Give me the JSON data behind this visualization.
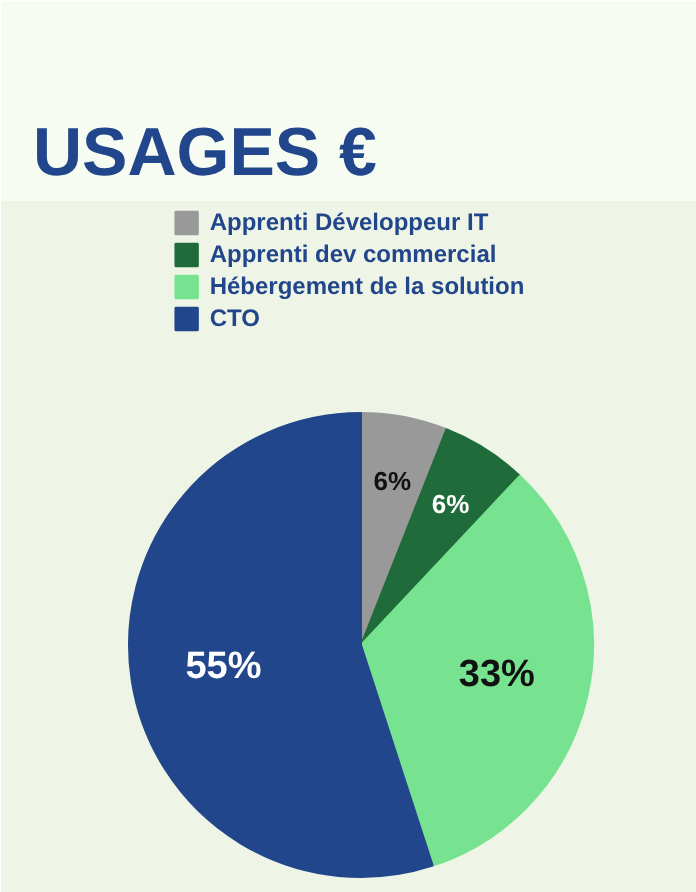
{
  "chart_data": {
    "type": "pie",
    "title": "USAGES €",
    "categories": [
      "Apprenti Développeur IT",
      "Apprenti dev commercial",
      "Hébergement de la solution",
      "CTO"
    ],
    "values": [
      6,
      6,
      33,
      55
    ],
    "colors": [
      "#999999",
      "#1f6b3a",
      "#77e28f",
      "#22468b"
    ],
    "value_labels": [
      "6%",
      "6%",
      "33%",
      "55%"
    ],
    "legend": "top"
  }
}
